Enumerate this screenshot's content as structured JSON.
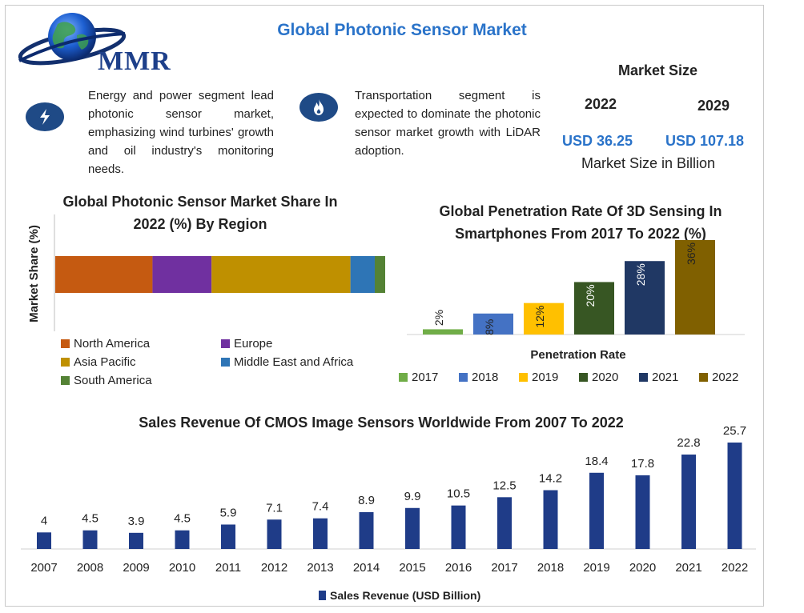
{
  "header": {
    "logo_text": "MMR",
    "title": "Global Photonic Sensor Market"
  },
  "highlights": [
    {
      "icon": "lightning-icon",
      "text": "Energy and power segment lead photonic sensor market, emphasizing wind turbines' growth and oil industry's monitoring needs."
    },
    {
      "icon": "flame-icon",
      "text": "Transportation segment is expected to dominate the photonic sensor market growth with LiDAR adoption."
    }
  ],
  "market_size": {
    "heading": "Market Size",
    "year_start": "2022",
    "year_end": "2029",
    "value_start": "USD 36.25",
    "value_end": "USD 107.18",
    "note": "Market Size in Billion"
  },
  "colors": {
    "accent": "#2a73c9",
    "navy": "#1f3c88"
  },
  "chart_data": [
    {
      "type": "bar",
      "orientation": "horizontal-stacked",
      "title": "Global Photonic Sensor Market Share In 2022 (%) By Region",
      "ylabel": "Market Share (%)",
      "series": [
        {
          "name": "North America",
          "value": 28,
          "color": "#c55a11"
        },
        {
          "name": "Europe",
          "value": 17,
          "color": "#7030a0"
        },
        {
          "name": "Asia Pacific",
          "value": 40,
          "color": "#bf9000"
        },
        {
          "name": "Middle East and Africa",
          "value": 7,
          "color": "#2e75b6"
        },
        {
          "name": "South America",
          "value": 3,
          "color": "#548235"
        }
      ],
      "xlim": [
        0,
        95
      ],
      "legend": "bottom"
    },
    {
      "type": "bar",
      "title": "Global Penetration Rate Of 3D Sensing In Smartphones From 2017 To 2022 (%)",
      "xlabel": "Penetration Rate",
      "categories": [
        "2017",
        "2018",
        "2019",
        "2020",
        "2021",
        "2022"
      ],
      "values": [
        2,
        8,
        12,
        20,
        28,
        36
      ],
      "value_labels": [
        "2%",
        "8%",
        "12%",
        "20%",
        "28%",
        "36%"
      ],
      "colors": [
        "#70ad47",
        "#4472c4",
        "#ffc000",
        "#375623",
        "#203864",
        "#806000"
      ],
      "ylim": [
        0,
        36
      ],
      "legend": "bottom"
    },
    {
      "type": "bar",
      "title": "Sales Revenue Of CMOS Image Sensors Worldwide From 2007 To 2022",
      "categories": [
        "2007",
        "2008",
        "2009",
        "2010",
        "2011",
        "2012",
        "2013",
        "2014",
        "2015",
        "2016",
        "2017",
        "2018",
        "2019",
        "2020",
        "2021",
        "2022"
      ],
      "series": [
        {
          "name": "Sales Revenue (USD Billion)",
          "values": [
            4,
            4.5,
            3.9,
            4.5,
            5.9,
            7.1,
            7.4,
            8.9,
            9.9,
            10.5,
            12.5,
            14.2,
            18.4,
            17.8,
            22.8,
            25.7
          ]
        }
      ],
      "ylim": [
        0,
        25.7
      ],
      "legend": "bottom"
    }
  ]
}
